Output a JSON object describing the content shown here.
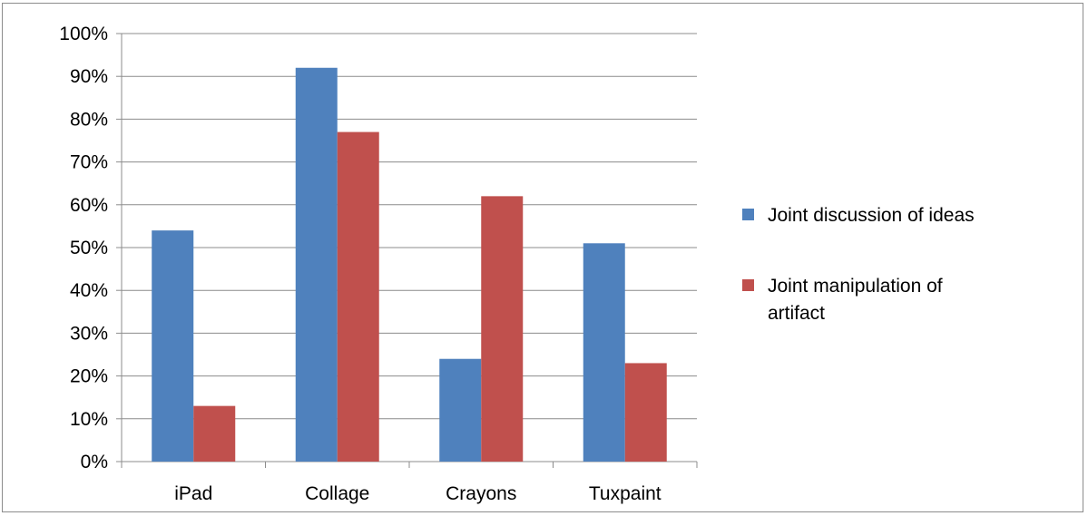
{
  "chart_data": {
    "type": "bar",
    "categories": [
      "iPad",
      "Collage",
      "Crayons",
      "Tuxpaint"
    ],
    "series": [
      {
        "name": "Joint discussion of ideas",
        "color": "#4f81bd",
        "values": [
          54,
          92,
          24,
          51
        ]
      },
      {
        "name": "Joint manipulation of artifact",
        "color": "#c0504d",
        "values": [
          13,
          77,
          62,
          23
        ]
      }
    ],
    "y_ticks": [
      "0%",
      "10%",
      "20%",
      "30%",
      "40%",
      "50%",
      "60%",
      "70%",
      "80%",
      "90%",
      "100%"
    ],
    "ylim": [
      0,
      100
    ],
    "y_unit": "%",
    "grid": true,
    "legend_position": "right",
    "legend_lines": [
      [
        "Joint discussion of ideas"
      ],
      [
        "Joint manipulation of",
        "artifact"
      ]
    ]
  }
}
